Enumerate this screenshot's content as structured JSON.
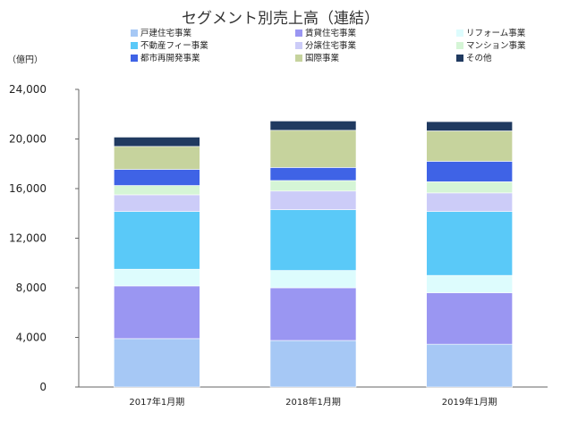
{
  "chart_data": {
    "type": "bar",
    "stacked": true,
    "title": "セグメント別売上高（連結）",
    "ylabel": "（億円）",
    "categories": [
      "2017年1月期",
      "2018年1月期",
      "2019年1月期"
    ],
    "ylim": [
      0,
      24000
    ],
    "yticks": [
      "0",
      "4,000",
      "8,000",
      "12,000",
      "16,000",
      "20,000",
      "24,000"
    ],
    "series": [
      {
        "name": "戸建住宅事業",
        "color": "#a6c8f5",
        "values": [
          3900,
          3750,
          3450
        ]
      },
      {
        "name": "賃貸住宅事業",
        "color": "#9a96f2",
        "values": [
          4250,
          4250,
          4150
        ]
      },
      {
        "name": "リフォーム事業",
        "color": "#ddfcfd",
        "values": [
          1350,
          1400,
          1400
        ]
      },
      {
        "name": "不動産フィー事業",
        "color": "#5ac9f8",
        "values": [
          4650,
          4900,
          5150
        ]
      },
      {
        "name": "分譲住宅事業",
        "color": "#ccccf8",
        "values": [
          1350,
          1500,
          1500
        ]
      },
      {
        "name": "マンション事業",
        "color": "#d5f5d6",
        "values": [
          750,
          850,
          900
        ]
      },
      {
        "name": "都市再開発事業",
        "color": "#3f63e6",
        "values": [
          1300,
          1050,
          1650
        ]
      },
      {
        "name": "国際事業",
        "color": "#c6d39d",
        "values": [
          1850,
          3000,
          2450
        ]
      },
      {
        "name": "その他",
        "color": "#203a60",
        "values": [
          750,
          750,
          750
        ]
      }
    ],
    "grid": false,
    "legend": "top"
  }
}
